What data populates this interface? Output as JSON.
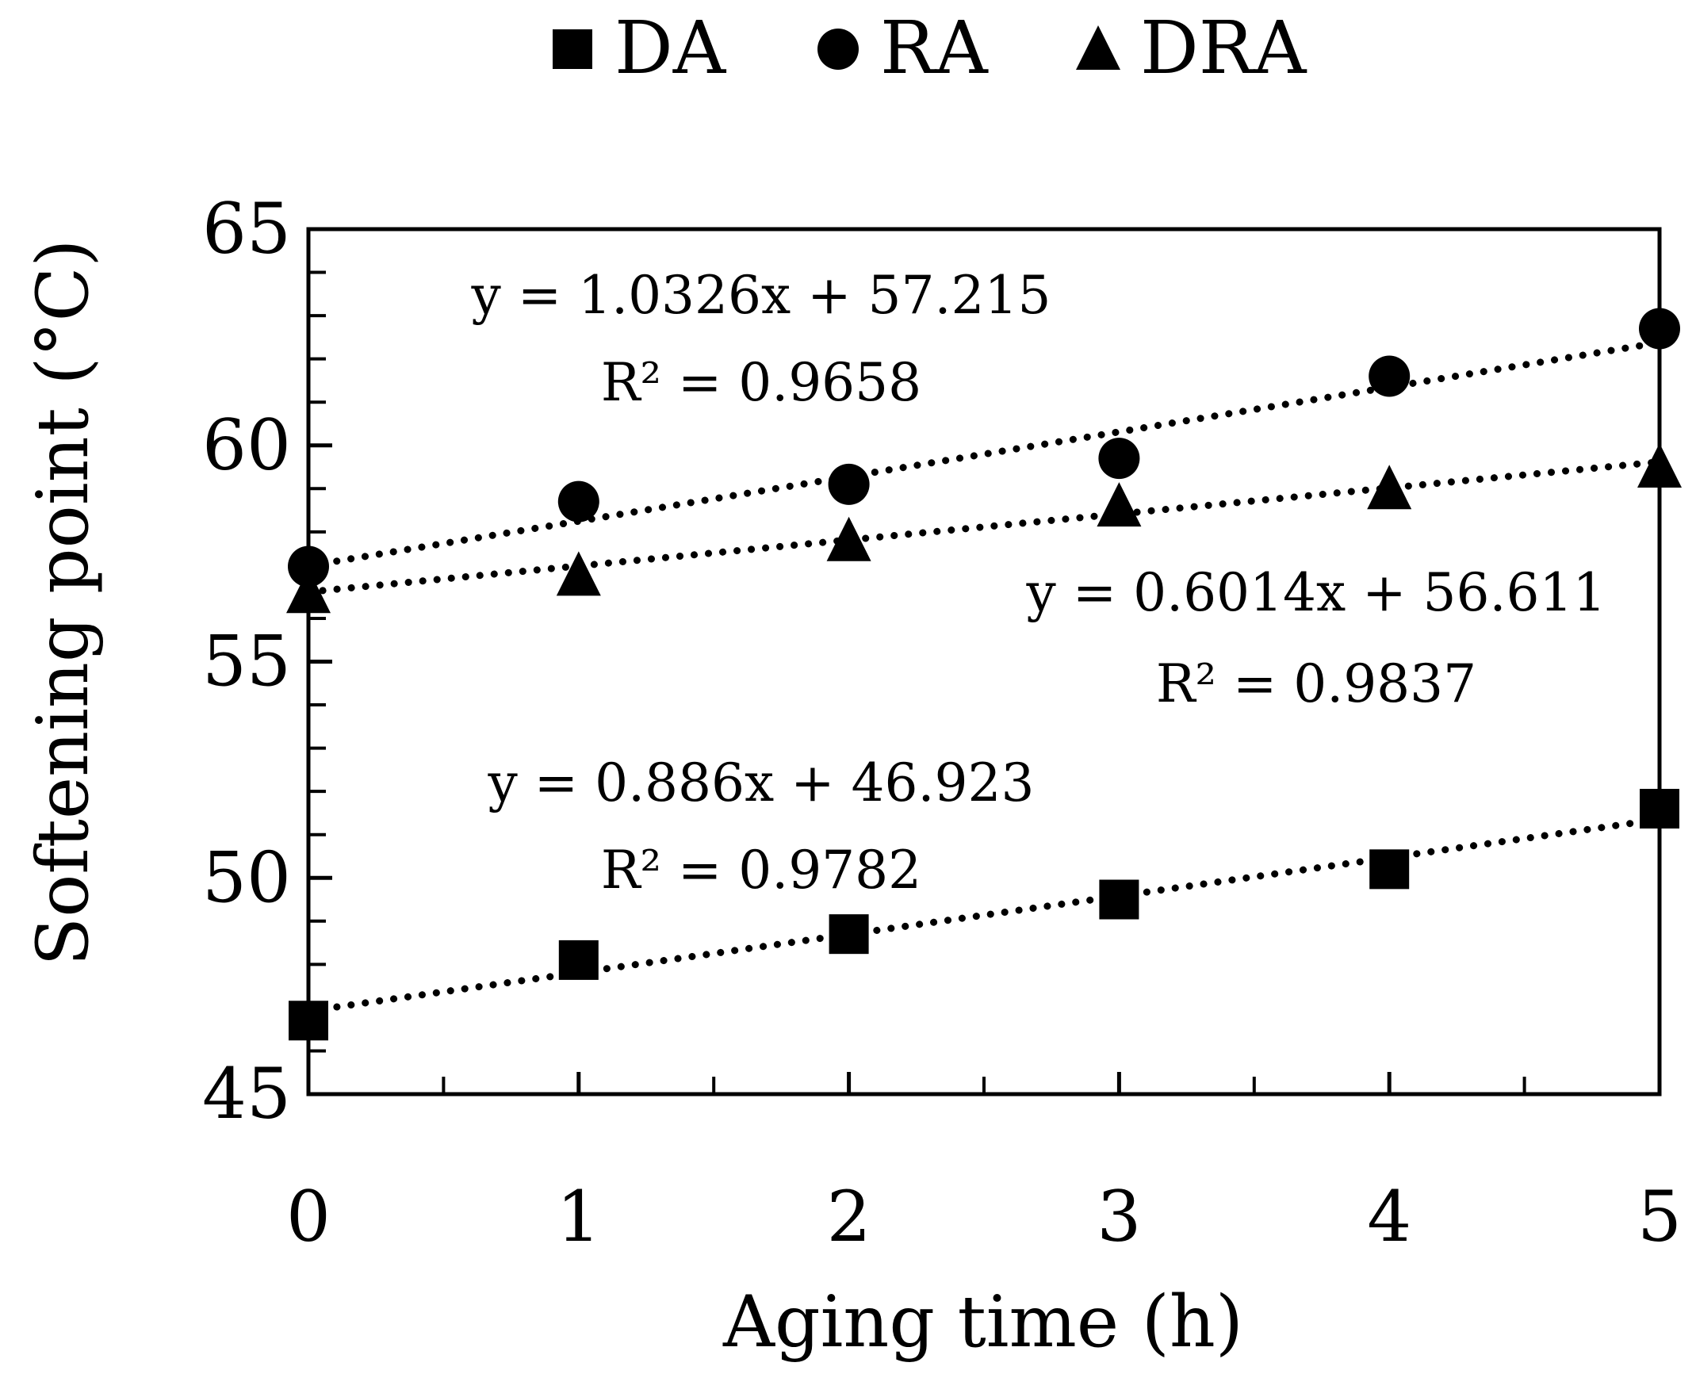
{
  "chart_data": {
    "type": "scatter",
    "xlabel": "Aging time (h)",
    "ylabel": "Softening point (°C)",
    "xlim": [
      0,
      5
    ],
    "ylim": [
      45,
      65
    ],
    "x_ticks": [
      0,
      1,
      2,
      3,
      4,
      5
    ],
    "y_ticks": [
      45,
      50,
      55,
      60,
      65
    ],
    "x_minor_step": 0.5,
    "y_minor_step": 1,
    "grid": false,
    "legend_position": "top",
    "series": [
      {
        "name": "DA",
        "marker": "square",
        "x": [
          0,
          1,
          2,
          3,
          4,
          5
        ],
        "values": [
          46.7,
          48.1,
          48.7,
          49.5,
          50.2,
          51.6
        ],
        "trendline": {
          "slope": 0.886,
          "intercept": 46.923,
          "equation": "y = 0.886x + 46.923",
          "r2": "R² = 0.9782"
        }
      },
      {
        "name": "RA",
        "marker": "circle",
        "x": [
          0,
          1,
          2,
          3,
          4,
          5
        ],
        "values": [
          57.2,
          58.7,
          59.1,
          59.7,
          61.6,
          62.7
        ],
        "trendline": {
          "slope": 1.0326,
          "intercept": 57.215,
          "equation": "y = 1.0326x + 57.215",
          "r2": "R² = 0.9658"
        }
      },
      {
        "name": "DRA",
        "marker": "triangle",
        "x": [
          0,
          1,
          2,
          3,
          4,
          5
        ],
        "values": [
          56.6,
          57.0,
          57.8,
          58.6,
          59.0,
          59.5
        ],
        "trendline": {
          "slope": 0.6014,
          "intercept": 56.611,
          "equation": "y = 0.6014x + 56.611",
          "r2": "R² = 0.9837"
        }
      }
    ]
  },
  "colors": {
    "ink": "#000000",
    "background": "#ffffff"
  }
}
